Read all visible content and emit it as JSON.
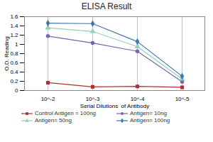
{
  "chart_data": {
    "type": "line",
    "title": "ELISA Result",
    "x_label": "Serial Dilutions  of Antibody",
    "y_label": "O.D. Reading",
    "categories": [
      "10^-2",
      "10^-3",
      "10^-4",
      "10^-5"
    ],
    "series": [
      {
        "name": "Control Antigen = 100ng",
        "color": "#b0302f",
        "marker": "square",
        "values": [
          0.17,
          0.08,
          0.09,
          0.07
        ]
      },
      {
        "name": "Antigen= 10ng",
        "color": "#7466b4",
        "marker": "circle",
        "values": [
          1.18,
          1.03,
          0.85,
          0.19
        ]
      },
      {
        "name": "Antigen= 50ng",
        "color": "#94d0b4",
        "marker": "triangle",
        "values": [
          1.36,
          1.28,
          0.95,
          0.25
        ]
      },
      {
        "name": "Antigen= 100ng",
        "color": "#3a78b0",
        "marker": "diamond",
        "values": [
          1.46,
          1.45,
          1.06,
          0.31
        ]
      }
    ],
    "ylim": [
      0,
      1.6
    ],
    "yticks": [
      0,
      0.2,
      0.4,
      0.6,
      0.8,
      1,
      1.2,
      1.4,
      1.6
    ],
    "grid": true,
    "legend": "bottom"
  }
}
